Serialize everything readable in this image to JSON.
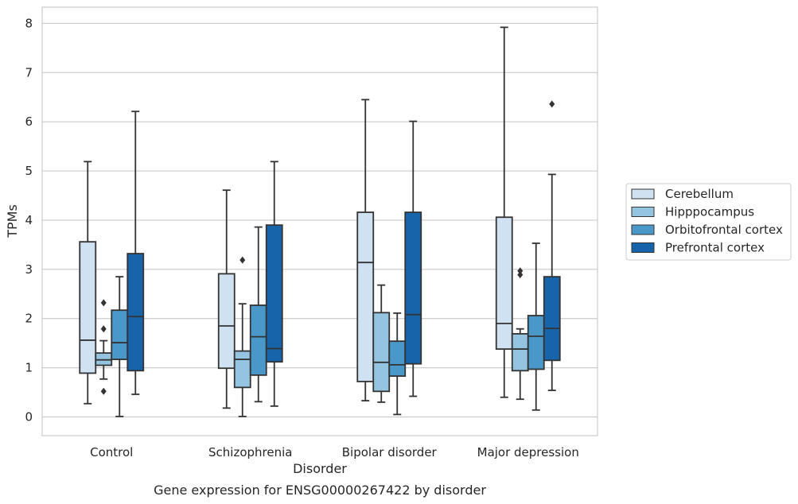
{
  "caption": "Gene expression for ENSG00000267422 by disorder",
  "chart_data": {
    "type": "boxplot",
    "xlabel": "Disorder",
    "ylabel": "TPMs",
    "ylim": [
      -0.38,
      8.33
    ],
    "yticks": [
      "0",
      "1",
      "2",
      "3",
      "4",
      "5",
      "6",
      "7",
      "8"
    ],
    "grid": true,
    "legend_position": "right",
    "categories": [
      "Control",
      "Schizophrenia",
      "Bipolar disorder",
      "Major depression"
    ],
    "series": [
      {
        "name": "Cerebellum",
        "color": "#d0e1f2",
        "boxes": [
          {
            "whislo": 0.27,
            "q1": 0.89,
            "med": 1.56,
            "q3": 3.56,
            "whishi": 5.19,
            "fliers": []
          },
          {
            "whislo": 0.18,
            "q1": 0.99,
            "med": 1.85,
            "q3": 2.91,
            "whishi": 4.61,
            "fliers": []
          },
          {
            "whislo": 0.33,
            "q1": 0.72,
            "med": 3.14,
            "q3": 4.16,
            "whishi": 6.45,
            "fliers": []
          },
          {
            "whislo": 0.4,
            "q1": 1.38,
            "med": 1.9,
            "q3": 4.06,
            "whishi": 7.92,
            "fliers": []
          }
        ]
      },
      {
        "name": "Hipppocampus",
        "color": "#94c4df",
        "boxes": [
          {
            "whislo": 0.77,
            "q1": 1.05,
            "med": 1.16,
            "q3": 1.3,
            "whishi": 1.55,
            "fliers": [
              2.32,
              1.79,
              0.52
            ]
          },
          {
            "whislo": 0.01,
            "q1": 0.6,
            "med": 1.17,
            "q3": 1.34,
            "whishi": 2.3,
            "fliers": [
              3.19
            ]
          },
          {
            "whislo": 0.3,
            "q1": 0.52,
            "med": 1.11,
            "q3": 2.12,
            "whishi": 2.68,
            "fliers": []
          },
          {
            "whislo": 0.36,
            "q1": 0.94,
            "med": 1.38,
            "q3": 1.69,
            "whishi": 1.79,
            "fliers": [
              2.97,
              2.89
            ]
          }
        ]
      },
      {
        "name": "Orbitofrontal cortex",
        "color": "#4a98c9",
        "boxes": [
          {
            "whislo": 0.01,
            "q1": 1.17,
            "med": 1.51,
            "q3": 2.17,
            "whishi": 2.85,
            "fliers": []
          },
          {
            "whislo": 0.31,
            "q1": 0.85,
            "med": 1.63,
            "q3": 2.27,
            "whishi": 3.86,
            "fliers": []
          },
          {
            "whislo": 0.05,
            "q1": 0.83,
            "med": 1.06,
            "q3": 1.54,
            "whishi": 2.11,
            "fliers": []
          },
          {
            "whislo": 0.14,
            "q1": 0.97,
            "med": 1.64,
            "q3": 2.06,
            "whishi": 3.53,
            "fliers": []
          }
        ]
      },
      {
        "name": "Prefrontal cortex",
        "color": "#1764ab",
        "boxes": [
          {
            "whislo": 0.46,
            "q1": 0.94,
            "med": 2.04,
            "q3": 3.32,
            "whishi": 6.21,
            "fliers": []
          },
          {
            "whislo": 0.22,
            "q1": 1.12,
            "med": 1.39,
            "q3": 3.9,
            "whishi": 5.19,
            "fliers": []
          },
          {
            "whislo": 0.42,
            "q1": 1.08,
            "med": 2.08,
            "q3": 4.16,
            "whishi": 6.01,
            "fliers": []
          },
          {
            "whislo": 0.54,
            "q1": 1.15,
            "med": 1.8,
            "q3": 2.85,
            "whishi": 4.93,
            "fliers": [
              6.36
            ]
          }
        ]
      }
    ]
  }
}
